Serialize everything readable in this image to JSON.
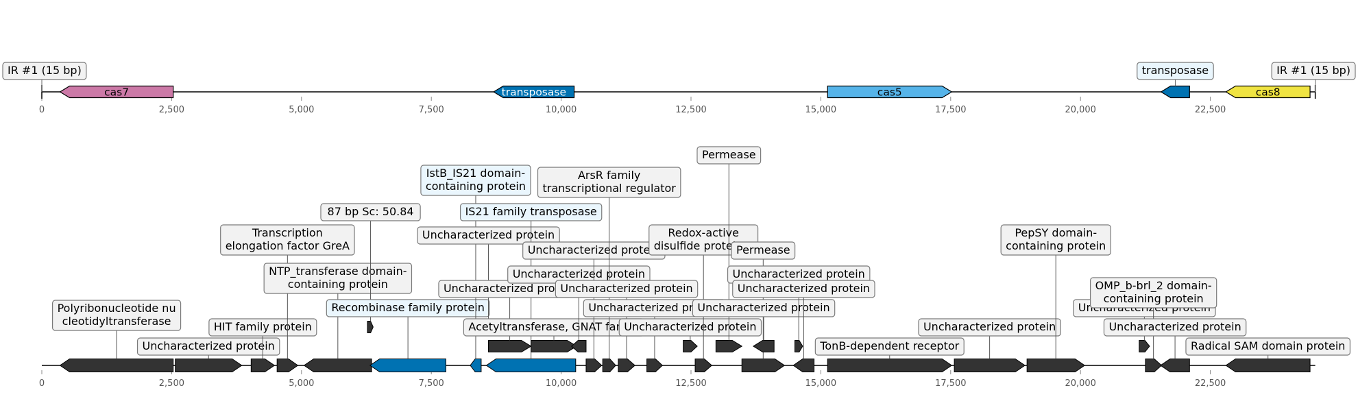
{
  "colors": {
    "cas7": "#cc79a7",
    "transposase": "#0072b2",
    "cas5": "#56b4e9",
    "cas8": "#f0e442",
    "other": "#333333",
    "label_box": "#f2f2f2",
    "label_box_highlight": "#eaf6fd",
    "axis": "#000000",
    "tick_label": "#555555"
  },
  "ticks": [
    "0",
    "2,500",
    "5,000",
    "7,500",
    "10,000",
    "12,500",
    "15,000",
    "17,500",
    "20,000",
    "22,500"
  ],
  "top_track": {
    "genes": [
      {
        "name": "cas7",
        "start": 350,
        "end": 2530,
        "strand": -1,
        "color_key": "cas7",
        "inner_label": "cas7"
      },
      {
        "name": "transposase",
        "start": 8700,
        "end": 10250,
        "strand": -1,
        "color_key": "transposase",
        "inner_label": "transposase"
      },
      {
        "name": "cas5",
        "start": 15130,
        "end": 17520,
        "strand": 1,
        "color_key": "cas5",
        "inner_label": "cas5"
      },
      {
        "name": "transposase",
        "start": 21550,
        "end": 22100,
        "strand": -1,
        "color_key": "transposase",
        "callout": "transposase",
        "highlight": true
      },
      {
        "name": "cas8",
        "start": 22800,
        "end": 24420,
        "strand": -1,
        "color_key": "cas8",
        "inner_label": "cas8"
      }
    ],
    "ir_labels": [
      {
        "text": "IR #1 (15 bp)",
        "pos": 0
      },
      {
        "text": "IR #1 (15 bp)",
        "pos": 24520
      }
    ]
  },
  "bottom_track": {
    "genes": [
      {
        "start": 350,
        "end": 2530,
        "strand": -1,
        "color_key": "other",
        "label": "Polyribonucleotide nu\ncleotidyltransferase",
        "level": 3
      },
      {
        "start": 2570,
        "end": 3850,
        "strand": 1,
        "color_key": "other",
        "label": "Uncharacterized protein",
        "level": 1
      },
      {
        "start": 4030,
        "end": 4480,
        "strand": 1,
        "color_key": "other",
        "label": "HIT family protein",
        "level": 2
      },
      {
        "start": 4530,
        "end": 4930,
        "strand": 1,
        "color_key": "other",
        "label": "Transcription\nelongation factor GreA",
        "level": 7
      },
      {
        "start": 5050,
        "end": 6350,
        "strand": -1,
        "color_key": "other",
        "label": "NTP_transferase domain-\ncontaining protein",
        "level": 5
      },
      {
        "start": 6270,
        "end": 6380,
        "strand": 1,
        "color_key": "other",
        "label": " 87 bp Sc: 50.84",
        "level": 8,
        "anchor_pos": 6330,
        "mark_y": 477
      },
      {
        "start": 6320,
        "end": 7780,
        "strand": -1,
        "color_key": "transposase",
        "label": "Recombinase family protein",
        "level": 3,
        "highlight": true
      },
      {
        "start": 8250,
        "end": 8460,
        "strand": -1,
        "color_key": "transposase",
        "label": "IstB_IS21 domain-\ncontaining protein",
        "level": 10,
        "highlight": true
      },
      {
        "start": 8500,
        "end": 8690,
        "strand": -1,
        "color_key": "other",
        "label": "Uncharacterized protein",
        "level": 7,
        "mark_y": 477,
        "anchor_pos": 8600
      },
      {
        "start": 8560,
        "end": 10280,
        "strand": -1,
        "color_key": "transposase",
        "label": "IS21 family transposase",
        "level": 8,
        "highlight": true
      },
      {
        "start": 8600,
        "end": 9420,
        "strand": 1,
        "color_key": "other",
        "label": "Uncharacterized protein",
        "level": 4,
        "mark_y": 505
      },
      {
        "start": 9420,
        "end": 10300,
        "strand": 1,
        "color_key": "other",
        "label": "Acetyltransferase, GNAT family",
        "level": 2,
        "mark_y": 505
      },
      {
        "start": 10200,
        "end": 10480,
        "strand": -1,
        "color_key": "other",
        "label": "Uncharacterized protein",
        "level": 5,
        "mark_y": 505
      },
      {
        "start": 10480,
        "end": 10780,
        "strand": 1,
        "color_key": "other",
        "label": "Uncharacterized protein",
        "level": 6
      },
      {
        "start": 10800,
        "end": 11050,
        "strand": 1,
        "color_key": "other",
        "label": "ArsR family\ntranscriptional regulator",
        "level": 9
      },
      {
        "start": 11100,
        "end": 11420,
        "strand": 1,
        "color_key": "other",
        "label": "Uncharacterized protein",
        "level": 4
      },
      {
        "start": 11650,
        "end": 11950,
        "strand": 1,
        "color_key": "other",
        "label": "Uncharacterized protein",
        "level": 3
      },
      {
        "start": 12350,
        "end": 12620,
        "strand": 1,
        "color_key": "other",
        "label": "Uncharacterized protein",
        "level": 2,
        "mark_y": 505
      },
      {
        "start": 12580,
        "end": 12900,
        "strand": 1,
        "color_key": "other",
        "label": "Redox-active\ndisulfide protein 2",
        "level": 7
      },
      {
        "start": 12980,
        "end": 13480,
        "strand": 1,
        "color_key": "other",
        "label": "Permease",
        "level": 11,
        "mark_y": 505
      },
      {
        "start": 13480,
        "end": 14300,
        "strand": 1,
        "color_key": "other",
        "label": "Permease",
        "level": 6
      },
      {
        "start": 13700,
        "end": 14100,
        "strand": -1,
        "color_key": "other",
        "label": "Uncharacterized protein",
        "level": 3,
        "mark_y": 505
      },
      {
        "start": 14500,
        "end": 14650,
        "strand": 1,
        "color_key": "other",
        "label": "Uncharacterized protein",
        "level": 5,
        "mark_y": 505
      },
      {
        "start": 14470,
        "end": 14870,
        "strand": -1,
        "color_key": "other",
        "label": "Uncharacterized protein",
        "level": 4
      },
      {
        "start": 15130,
        "end": 17520,
        "strand": 1,
        "color_key": "other",
        "label": "TonB-dependent receptor",
        "level": 1
      },
      {
        "start": 17570,
        "end": 18930,
        "strand": 1,
        "color_key": "other",
        "label": "Uncharacterized protein",
        "level": 2
      },
      {
        "start": 18970,
        "end": 20080,
        "strand": 1,
        "color_key": "other",
        "label": "PepSY domain-\ncontaining protein",
        "level": 7
      },
      {
        "start": 21130,
        "end": 21330,
        "strand": 1,
        "color_key": "other",
        "label": "Uncharacterized protein",
        "level": 3,
        "mark_y": 505
      },
      {
        "start": 21250,
        "end": 21560,
        "strand": 1,
        "color_key": "other",
        "label": "OMP_b-brl_2 domain-\ncontaining protein",
        "level": 4
      },
      {
        "start": 21540,
        "end": 22100,
        "strand": -1,
        "color_key": "other",
        "label": "Uncharacterized protein",
        "level": 2
      },
      {
        "start": 22800,
        "end": 24420,
        "strand": -1,
        "color_key": "other",
        "label": "Radical SAM domain protein",
        "level": 1
      }
    ]
  }
}
